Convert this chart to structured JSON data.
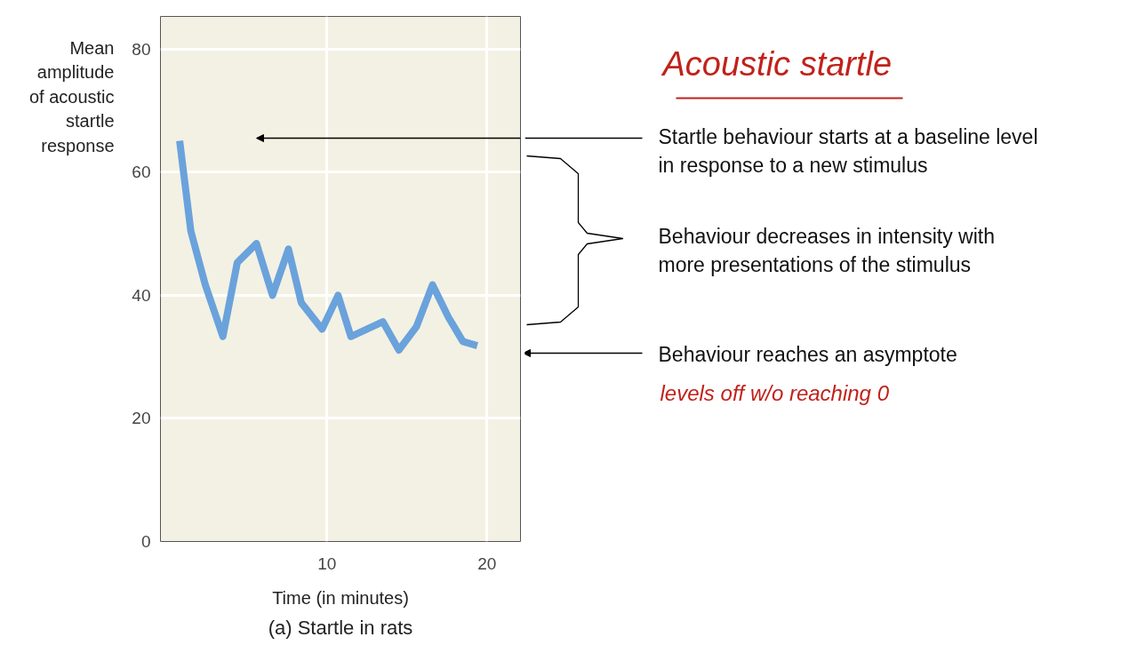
{
  "chart_data": {
    "type": "line",
    "title": "(a) Startle in rats",
    "xlabel": "Time (in minutes)",
    "ylabel": "Mean\namplitude\nof acoustic\nstartle\nresponse",
    "x": [
      0.8,
      1.5,
      2.4,
      3.5,
      4.4,
      5.6,
      6.6,
      7.6,
      8.4,
      9.7,
      10.7,
      11.5,
      13.5,
      14.5,
      15.6,
      16.6,
      17.6,
      18.5,
      19.4
    ],
    "values": [
      65.1,
      50.4,
      41.7,
      33.3,
      45.3,
      48.4,
      40.0,
      47.5,
      38.8,
      34.5,
      40.0,
      33.3,
      35.7,
      31.1,
      34.9,
      41.7,
      36.4,
      32.5,
      31.8
    ],
    "color": "#6aa2dc",
    "xlim": [
      -0.4,
      22.1
    ],
    "ylim": [
      0,
      85.3
    ],
    "xticks": [
      10,
      20
    ],
    "yticks": [
      0,
      20,
      40,
      60,
      80
    ],
    "grid": true,
    "annotations": [
      "Acoustic startle",
      "Startle behaviour starts at a baseline level\nin response to a new stimulus",
      "Behaviour decreases in intensity with\nmore presentations of the stimulus",
      "Behaviour reaches an asymptote",
      "levels off w/o reaching 0"
    ]
  }
}
